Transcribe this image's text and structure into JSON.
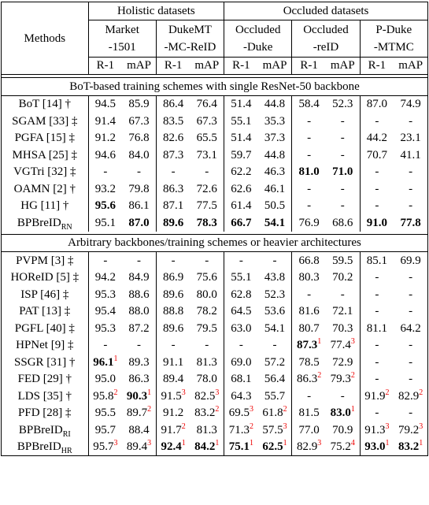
{
  "table": {
    "methods_header": "Methods",
    "groups": [
      "Holistic datasets",
      "Occluded datasets"
    ],
    "datasets": [
      [
        "Market",
        "-1501"
      ],
      [
        "DukeMT",
        "-MC-ReID"
      ],
      [
        "Occluded",
        "-Duke"
      ],
      [
        "Occluded",
        "-reID"
      ],
      [
        "P-Duke",
        "-MTMC"
      ]
    ],
    "metrics": [
      "R-1",
      "mAP"
    ],
    "sections": [
      {
        "title": "BoT-based training schemes with single ResNet-50 backbone",
        "rows": [
          {
            "method": "BoT [14] †",
            "cells": [
              "94.5",
              "85.9",
              "86.4",
              "76.4",
              "51.4",
              "44.8",
              "58.4",
              "52.3",
              "87.0",
              "74.9"
            ]
          },
          {
            "method": "SGAM [33] ‡",
            "cells": [
              "91.4",
              "67.3",
              "83.5",
              "67.3",
              "55.1",
              "35.3",
              "-",
              "-",
              "-",
              "-"
            ]
          },
          {
            "method": "PGFA [15] ‡",
            "cells": [
              "91.2",
              "76.8",
              "82.6",
              "65.5",
              "51.4",
              "37.3",
              "-",
              "-",
              "44.2",
              "23.1"
            ]
          },
          {
            "method": "MHSA [25] ‡",
            "cells": [
              "94.6",
              "84.0",
              "87.3",
              "73.1",
              "59.7",
              "44.8",
              "-",
              "-",
              "70.7",
              "41.1"
            ]
          },
          {
            "method": "VGTri [32] ‡",
            "cells": [
              "-",
              "-",
              "-",
              "-",
              "62.2",
              "46.3",
              {
                "text": "81.0",
                "bold": true
              },
              {
                "text": "71.0",
                "bold": true
              },
              "-",
              "-"
            ]
          },
          {
            "method": "OAMN [2] †",
            "cells": [
              "93.2",
              "79.8",
              "86.3",
              "72.6",
              "62.6",
              "46.1",
              "-",
              "-",
              "-",
              "-"
            ]
          },
          {
            "method": "HG [11] †",
            "cells": [
              {
                "text": "95.6",
                "bold": true
              },
              "86.1",
              "87.1",
              "77.5",
              "61.4",
              "50.5",
              "-",
              "-",
              "-",
              "-"
            ]
          },
          {
            "method": "BPBreID",
            "sub": "RN",
            "cells": [
              "95.1",
              {
                "text": "87.0",
                "bold": true
              },
              {
                "text": "89.6",
                "bold": true
              },
              {
                "text": "78.3",
                "bold": true
              },
              {
                "text": "66.7",
                "bold": true
              },
              {
                "text": "54.1",
                "bold": true
              },
              "76.9",
              "68.6",
              {
                "text": "91.0",
                "bold": true
              },
              {
                "text": "77.8",
                "bold": true
              }
            ]
          }
        ]
      },
      {
        "title": "Arbitrary backbones/training schemes or heavier architectures",
        "rows": [
          {
            "method": "PVPM [3] ‡",
            "cells": [
              "-",
              "-",
              "-",
              "-",
              "-",
              "-",
              "66.8",
              "59.5",
              "85.1",
              "69.9"
            ]
          },
          {
            "method": "HOReID [5] ‡",
            "cells": [
              "94.2",
              "84.9",
              "86.9",
              "75.6",
              "55.1",
              "43.8",
              "80.3",
              "70.2",
              "-",
              "-"
            ]
          },
          {
            "method": "ISP [46] ‡",
            "cells": [
              "95.3",
              "88.6",
              "89.6",
              "80.0",
              "62.8",
              "52.3",
              "-",
              "-",
              "-",
              "-"
            ]
          },
          {
            "method": "PAT [13] ‡",
            "cells": [
              "95.4",
              "88.0",
              "88.8",
              "78.2",
              "64.5",
              "53.6",
              "81.6",
              "72.1",
              "-",
              "-"
            ]
          },
          {
            "method": "PGFL [40] ‡",
            "cells": [
              "95.3",
              "87.2",
              "89.6",
              "79.5",
              "63.0",
              "54.1",
              "80.7",
              "70.3",
              "81.1",
              "64.2"
            ]
          },
          {
            "method": "HPNet [9] ‡",
            "cells": [
              "-",
              "-",
              "-",
              "-",
              "-",
              "-",
              {
                "text": "87.3",
                "sup": "1",
                "bold": true
              },
              {
                "text": "77.4",
                "sup": "3"
              },
              "-",
              "-"
            ]
          },
          {
            "method": "SSGR [31] †",
            "cells": [
              {
                "text": "96.1",
                "sup": "1",
                "bold": true
              },
              "89.3",
              "91.1",
              "81.3",
              "69.0",
              "57.2",
              "78.5",
              "72.9",
              "-",
              "-"
            ]
          },
          {
            "method": "FED [29] †",
            "cells": [
              "95.0",
              "86.3",
              "89.4",
              "78.0",
              "68.1",
              "56.4",
              {
                "text": "86.3",
                "sup": "2"
              },
              {
                "text": "79.3",
                "sup": "2"
              },
              "-",
              "-"
            ]
          },
          {
            "method": "LDS [35] †",
            "cells": [
              {
                "text": "95.8",
                "sup": "2"
              },
              {
                "text": "90.3",
                "sup": "1",
                "bold": true
              },
              {
                "text": "91.5",
                "sup": "3"
              },
              {
                "text": "82.5",
                "sup": "3"
              },
              "64.3",
              "55.7",
              "-",
              "-",
              {
                "text": "91.9",
                "sup": "2"
              },
              {
                "text": "82.9",
                "sup": "2"
              }
            ]
          },
          {
            "method": "PFD [28] ‡",
            "cells": [
              "95.5",
              {
                "text": "89.7",
                "sup": "2"
              },
              "91.2",
              {
                "text": "83.2",
                "sup": "2"
              },
              {
                "text": "69.5",
                "sup": "3"
              },
              {
                "text": "61.8",
                "sup": "2"
              },
              "81.5",
              {
                "text": "83.0",
                "sup": "1",
                "bold": true
              },
              "-",
              "-"
            ]
          },
          {
            "method": "BPBreID",
            "sub": "RI",
            "cells": [
              "95.7",
              "88.4",
              {
                "text": "91.7",
                "sup": "2"
              },
              "81.3",
              {
                "text": "71.3",
                "sup": "2"
              },
              {
                "text": "57.5",
                "sup": "3"
              },
              "77.0",
              "70.9",
              {
                "text": "91.3",
                "sup": "3"
              },
              {
                "text": "79.2",
                "sup": "3"
              }
            ]
          },
          {
            "method": "BPBreID",
            "sub": "HR",
            "cells": [
              {
                "text": "95.7",
                "sup": "3"
              },
              {
                "text": "89.4",
                "sup": "3"
              },
              {
                "text": "92.4",
                "sup": "1",
                "bold": true
              },
              {
                "text": "84.2",
                "sup": "1",
                "bold": true
              },
              {
                "text": "75.1",
                "sup": "1",
                "bold": true
              },
              {
                "text": "62.5",
                "sup": "1",
                "bold": true
              },
              {
                "text": "82.9",
                "sup": "3"
              },
              {
                "text": "75.2",
                "sup": "4"
              },
              {
                "text": "93.0",
                "sup": "1",
                "bold": true
              },
              {
                "text": "83.2",
                "sup": "1",
                "bold": true
              }
            ]
          }
        ]
      }
    ]
  }
}
